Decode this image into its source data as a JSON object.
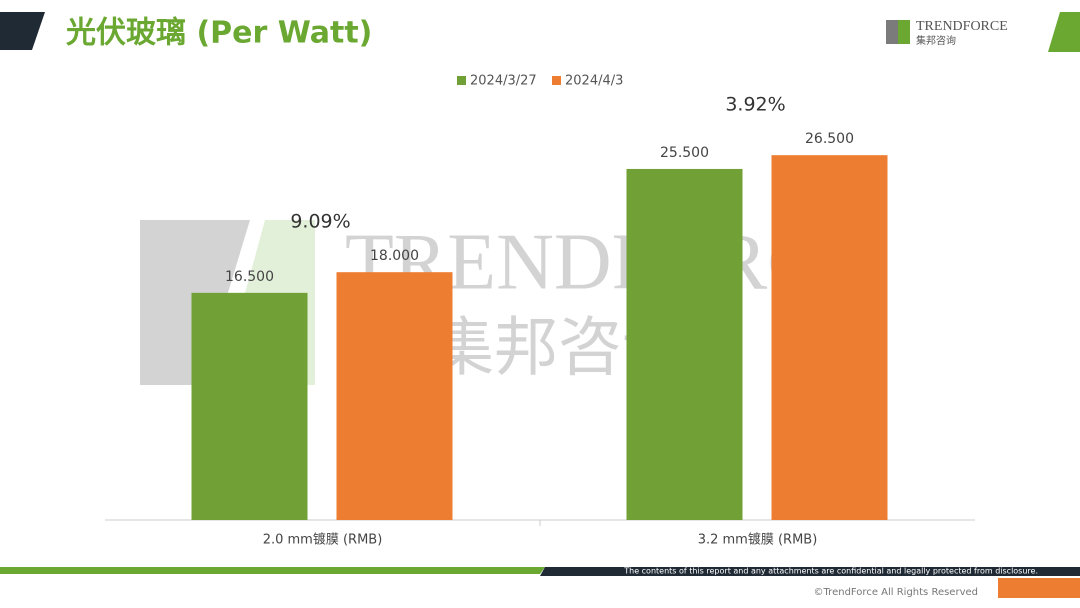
{
  "header": {
    "title": "光伏玻璃 (Per Watt)",
    "logo_en": "TRENDFORCE",
    "logo_cn": "集邦咨询"
  },
  "watermark": {
    "en": "TRENDFORCE",
    "cn": "集邦咨询"
  },
  "chart_data": {
    "type": "bar",
    "categories": [
      "2.0 mm镀膜 (RMB)",
      "3.2 mm镀膜 (RMB)"
    ],
    "series": [
      {
        "name": "2024/3/27",
        "color": "#70a036",
        "values": [
          16.5,
          25.5
        ],
        "value_labels": [
          "16.500",
          "25.500"
        ]
      },
      {
        "name": "2024/4/3",
        "color": "#ed7d31",
        "values": [
          18,
          26.5
        ],
        "value_labels": [
          "18.000",
          "26.500"
        ]
      }
    ],
    "annotations": [
      "9.09%",
      "3.92%"
    ],
    "ylim": [
      0,
      30
    ],
    "legend": "top"
  },
  "footer": {
    "notice": "The contents of this report and any attachments are confidential and legally protected from disclosure.",
    "copyright": "©TrendForce All Rights Reserved"
  }
}
